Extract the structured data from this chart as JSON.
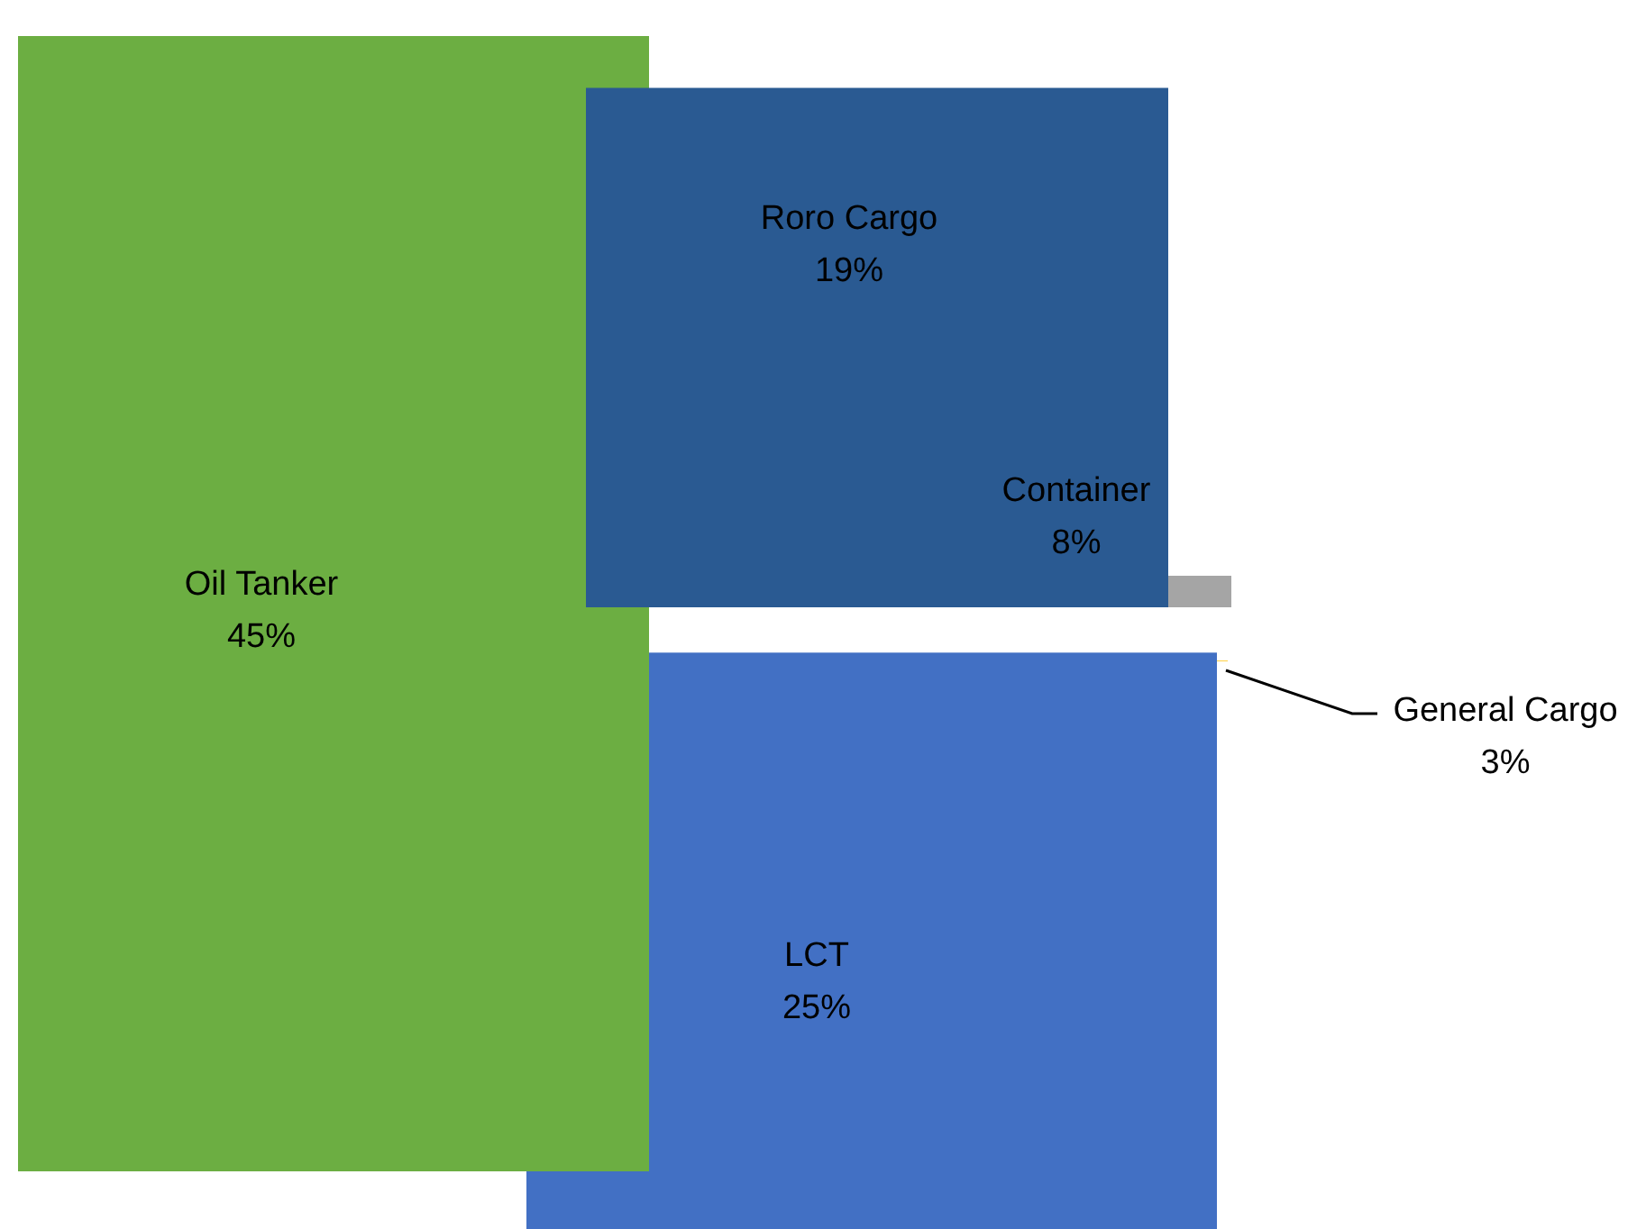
{
  "chart_data": {
    "type": "other",
    "categories": [
      "Oil Tanker",
      "LCT",
      "Roro Cargo",
      "Container",
      "General Cargo"
    ],
    "values": [
      45,
      25,
      19,
      8,
      3
    ],
    "value_labels": [
      "45%",
      "25%",
      "19%",
      "8%",
      "3%"
    ],
    "colors": [
      "#6cae42",
      "#4270c4",
      "#2a5a92",
      "#a5a5a5",
      "#ffc000"
    ]
  }
}
